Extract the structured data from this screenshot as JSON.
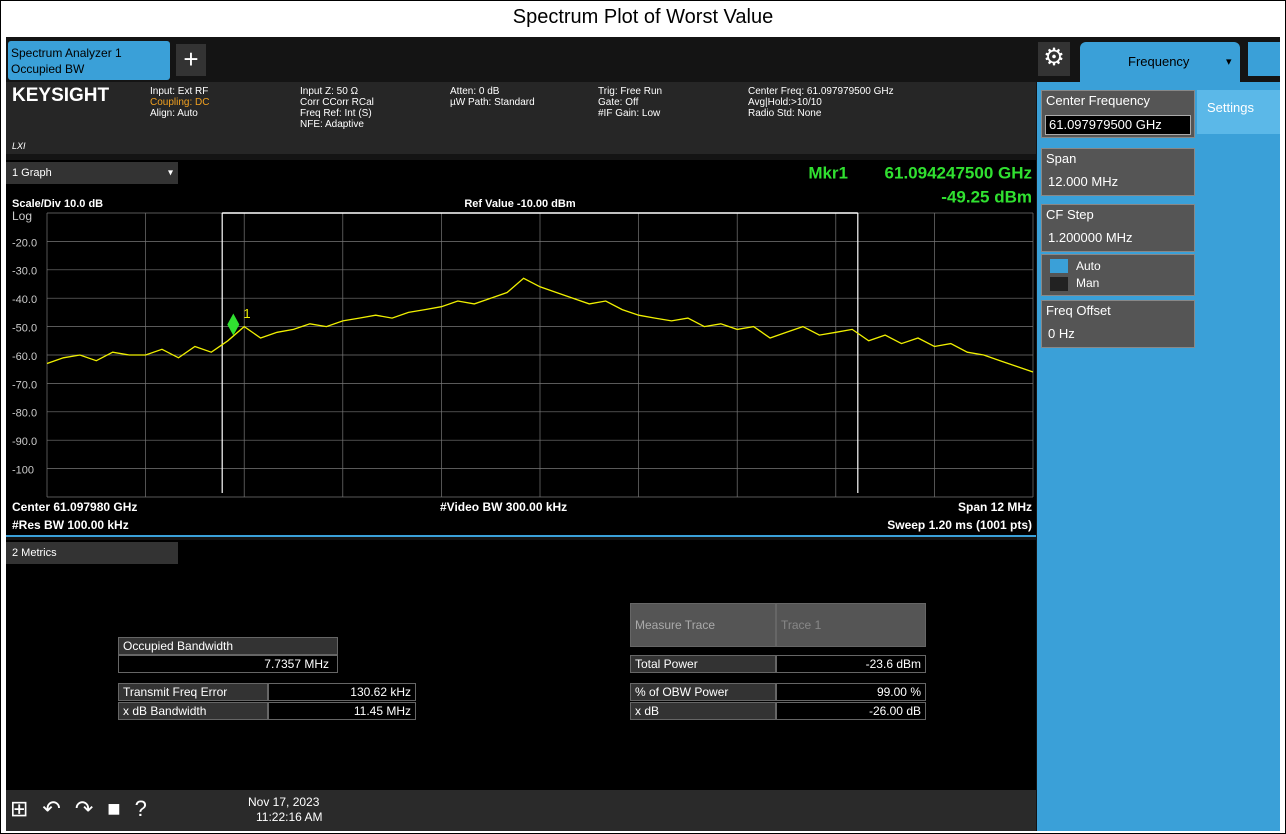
{
  "title": "Spectrum Plot of Worst Value",
  "tabs": {
    "analyzer": "Spectrum Analyzer 1",
    "mode": "Occupied BW",
    "menu": "Frequency"
  },
  "brand": "KEYSIGHT",
  "brand_sub": "LXI",
  "info": [
    [
      "Input: Ext RF",
      "Coupling: DC",
      "Align: Auto"
    ],
    [
      "Input Z: 50 Ω",
      "Corr CCorr RCal",
      "Freq Ref: Int (S)",
      "NFE: Adaptive"
    ],
    [
      "Atten: 0 dB",
      "µW Path: Standard"
    ],
    [
      "Trig: Free Run",
      "Gate: Off",
      "#IF Gain: Low"
    ],
    [
      "Center Freq: 61.097979500 GHz",
      "Avg|Hold:>10/10",
      "Radio Std: None"
    ]
  ],
  "graph": {
    "window": "1 Graph",
    "marker_label": "Mkr1",
    "marker_freq": "61.094247500 GHz",
    "marker_value": "-49.25 dBm",
    "marker_id": "1",
    "scale": "Scale/Div 10.0 dB",
    "log": "Log",
    "ref": "Ref Value -10.00 dBm",
    "ylim": [
      -110,
      -10
    ],
    "yticks": [
      {
        "value": -20,
        "label": "-20.0"
      },
      {
        "value": -30,
        "label": "-30.0"
      },
      {
        "value": -40,
        "label": "-40.0"
      },
      {
        "value": -50,
        "label": "-50.0"
      },
      {
        "value": -60,
        "label": "-60.0"
      },
      {
        "value": -70,
        "label": "-70.0"
      },
      {
        "value": -80,
        "label": "-80.0"
      },
      {
        "value": -90,
        "label": "-90.0"
      },
      -100
    ],
    "center": "Center 61.097980 GHz",
    "center_freq": "61.097980 GHz",
    "video_bw": "#Video BW 300.00 kHz",
    "span": "Span 12 MHz",
    "span_value": "12 MHz",
    "res_bw": "#Res BW 100.00 kHz",
    "sweep": "Sweep 1.20 ms (1001 pts)",
    "trace_color": "#f0f000",
    "trace": [
      -63,
      -61,
      -60,
      -62,
      -59,
      -60,
      -60,
      -58,
      -61,
      -57,
      -59,
      -55,
      -50,
      -54,
      -52,
      -51,
      -49,
      -50,
      -48,
      -47,
      -46,
      -47,
      -45,
      -44,
      -43,
      -41,
      -42,
      -40,
      -38,
      -33,
      -36,
      -38,
      -40,
      -42,
      -41,
      -44,
      -46,
      -47,
      -48,
      -47,
      -50,
      -49,
      -51,
      -50,
      -54,
      -52,
      -50,
      -53,
      -52,
      -51,
      -55,
      -53,
      -56,
      -54,
      -57,
      -56,
      -59,
      -60,
      -62,
      -64,
      -66
    ]
  },
  "metrics": {
    "window": "2 Metrics",
    "obw_label": "Occupied Bandwidth",
    "obw_value": "7.7357 MHz",
    "left_rows": [
      [
        "Transmit Freq Error",
        "130.62 kHz"
      ],
      [
        "x dB Bandwidth",
        "11.45 MHz"
      ]
    ],
    "measure_trace": [
      "Measure Trace",
      "Trace 1"
    ],
    "right_rows": [
      [
        "Total Power",
        "-23.6 dBm"
      ],
      [
        "% of OBW Power",
        "99.00 %"
      ],
      [
        "x dB",
        "-26.00 dB"
      ]
    ]
  },
  "panel": {
    "tab": "Settings",
    "items": [
      [
        "Center Frequency",
        "61.097979500 GHz"
      ],
      [
        "Span",
        "12.000 MHz"
      ],
      [
        "CF Step",
        "1.200000 MHz"
      ],
      [
        "Freq Offset",
        "0 Hz"
      ]
    ],
    "auto": "Auto",
    "man": "Man"
  },
  "status": {
    "date": "Nov 17, 2023",
    "time": "11:22:16 AM"
  }
}
